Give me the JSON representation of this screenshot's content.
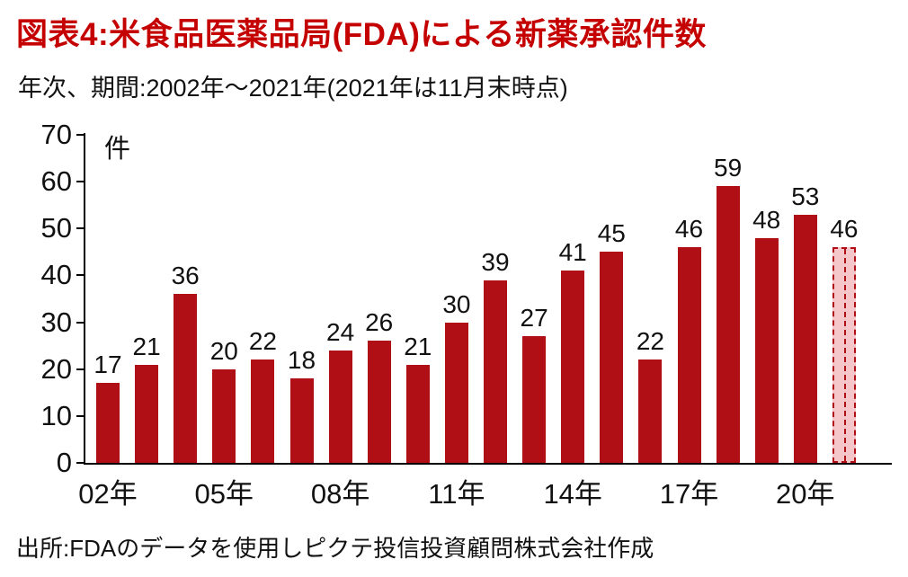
{
  "header": {
    "title": "図表4:米食品医薬品局(FDA)による新薬承認件数",
    "subtitle": "年次、期間:2002年〜2021年(2021年は11月末時点)"
  },
  "footer": {
    "source": "出所:FDAのデータを使用しピクテ投信投資顧問株式会社作成"
  },
  "chart_data": {
    "type": "bar",
    "title": "図表4:米食品医薬品局(FDA)による新薬承認件数",
    "unit_label": "件",
    "categories": [
      "2002",
      "2003",
      "2004",
      "2005",
      "2006",
      "2007",
      "2008",
      "2009",
      "2010",
      "2011",
      "2012",
      "2013",
      "2014",
      "2015",
      "2016",
      "2017",
      "2018",
      "2019",
      "2020",
      "2021"
    ],
    "values": [
      17,
      21,
      36,
      20,
      22,
      18,
      24,
      26,
      21,
      30,
      39,
      27,
      41,
      45,
      22,
      46,
      59,
      48,
      53,
      46
    ],
    "x_tick_labels": [
      {
        "index": 0,
        "label": "02年"
      },
      {
        "index": 3,
        "label": "05年"
      },
      {
        "index": 6,
        "label": "08年"
      },
      {
        "index": 9,
        "label": "11年"
      },
      {
        "index": 12,
        "label": "14年"
      },
      {
        "index": 15,
        "label": "17年"
      },
      {
        "index": 18,
        "label": "20年"
      }
    ],
    "y_ticks": [
      0,
      10,
      20,
      30,
      40,
      50,
      60,
      70
    ],
    "ylim": [
      0,
      70
    ],
    "grid": false,
    "legend": "none",
    "last_bar_dashed": true,
    "colors": {
      "title": "#c40000",
      "bar": "#b00f16",
      "last_bar_fill": "#f5c6ca",
      "last_bar_border": "#b00f16",
      "axis": "#000000",
      "text": "#111111"
    }
  }
}
